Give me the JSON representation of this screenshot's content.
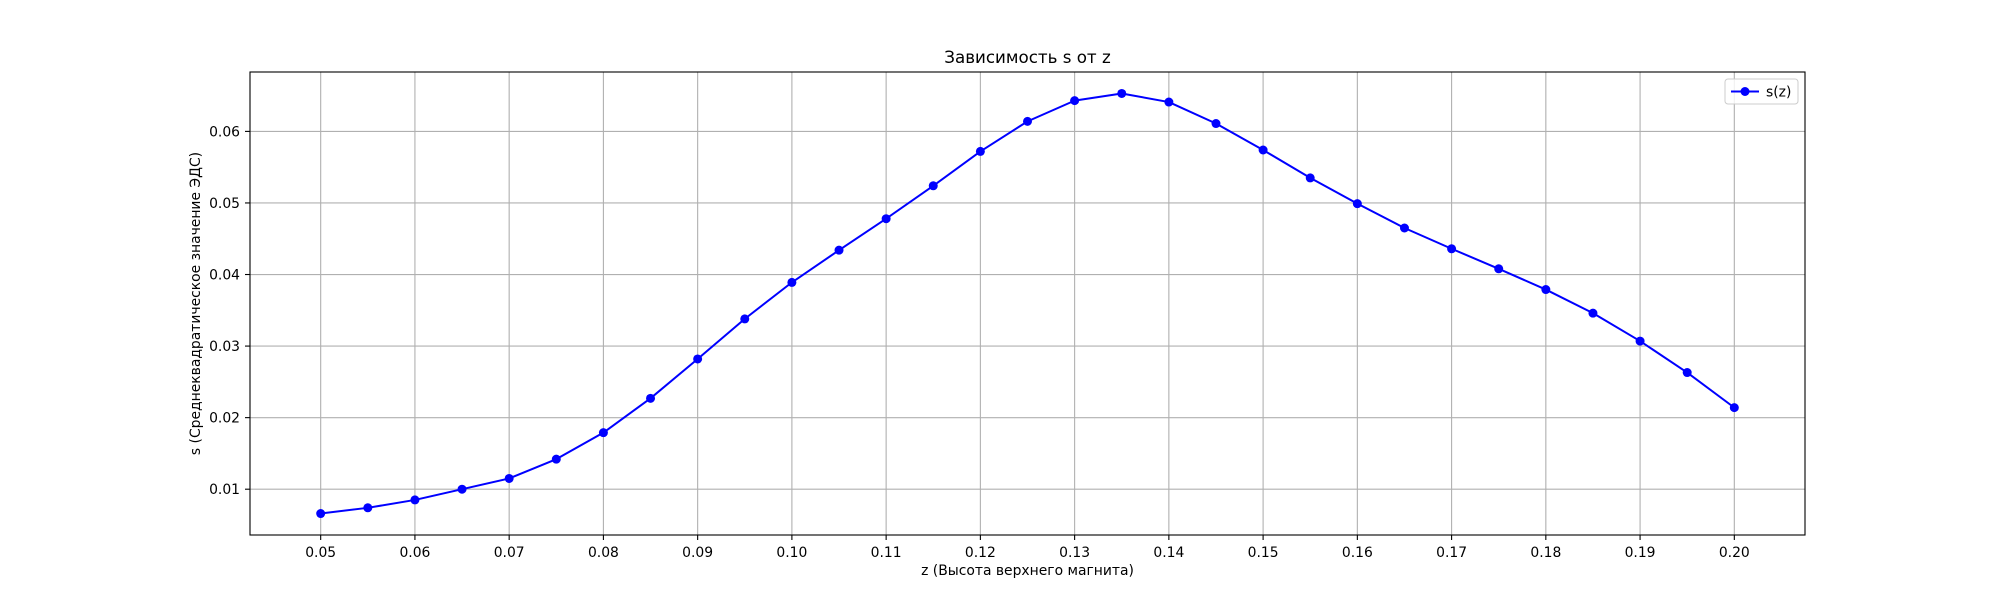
{
  "chart_data": {
    "type": "line",
    "title": "Зависимость s от z",
    "xlabel": "z (Высота верхнего магнита)",
    "ylabel": "s (Среднеквадратическое значение ЭДС)",
    "xlim": [
      0.0425,
      0.2075
    ],
    "ylim": [
      0.0036,
      0.0683
    ],
    "xticks": [
      "0.05",
      "0.06",
      "0.07",
      "0.08",
      "0.09",
      "0.10",
      "0.11",
      "0.12",
      "0.13",
      "0.14",
      "0.15",
      "0.16",
      "0.17",
      "0.18",
      "0.19",
      "0.20"
    ],
    "yticks": [
      "0.01",
      "0.02",
      "0.03",
      "0.04",
      "0.05",
      "0.06"
    ],
    "grid": true,
    "legend_position": "top-right",
    "series": [
      {
        "name": "s(z)",
        "color": "#0000ff",
        "marker": "circle",
        "x": [
          0.05,
          0.055,
          0.06,
          0.065,
          0.07,
          0.075,
          0.08,
          0.085,
          0.09,
          0.095,
          0.1,
          0.105,
          0.11,
          0.115,
          0.12,
          0.125,
          0.13,
          0.135,
          0.14,
          0.145,
          0.15,
          0.155,
          0.16,
          0.165,
          0.17,
          0.175,
          0.18,
          0.185,
          0.19,
          0.195,
          0.2
        ],
        "y": [
          0.0066,
          0.0074,
          0.0085,
          0.01,
          0.0115,
          0.0142,
          0.0179,
          0.0227,
          0.0282,
          0.0338,
          0.0389,
          0.0434,
          0.0478,
          0.0524,
          0.0572,
          0.0614,
          0.0643,
          0.0653,
          0.0641,
          0.0611,
          0.0574,
          0.0535,
          0.0499,
          0.0465,
          0.0436,
          0.0408,
          0.0379,
          0.0346,
          0.0307,
          0.0263,
          0.0214
        ]
      }
    ]
  }
}
